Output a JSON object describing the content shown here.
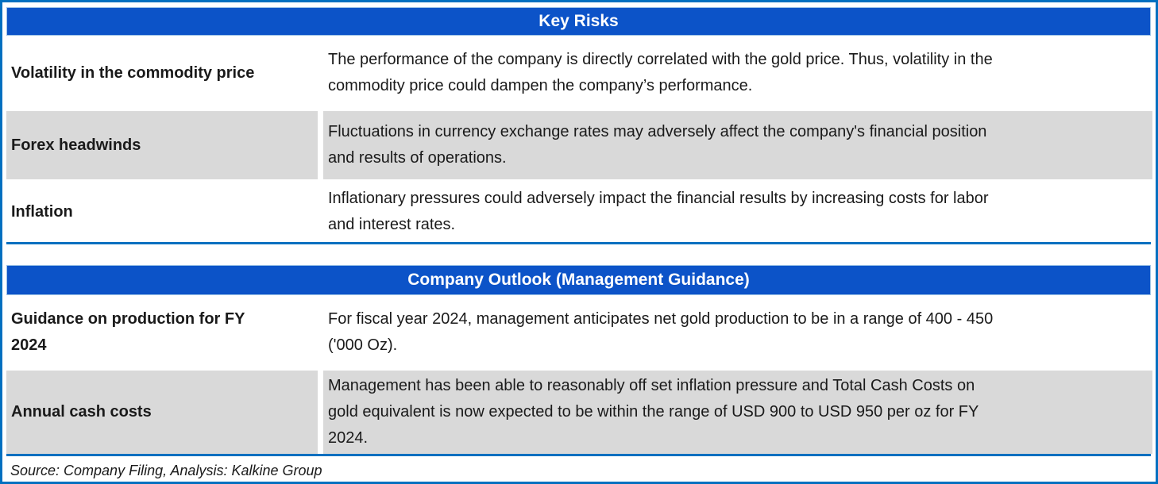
{
  "palette": {
    "frame_border_blue": "#0070C0",
    "header_fill_blue": "#0C53C8",
    "row_gray": "#D9D9D9",
    "text_color": "#1a1a1a"
  },
  "key_risks": {
    "title": "Key Risks",
    "rows": [
      {
        "label": "Volatility in the commodity price",
        "description": "The performance of the company is directly correlated with the gold price. Thus, volatility in the\ncommodity price could dampen the company’s performance."
      },
      {
        "label": "Forex headwinds",
        "description": "Fluctuations in currency exchange rates may adversely affect the company's financial position\nand results of operations."
      },
      {
        "label": "Inflation",
        "description": "Inflationary pressures could adversely impact the financial results by increasing costs for labor\nand interest rates."
      }
    ]
  },
  "company_outlook": {
    "title": "Company Outlook (Management Guidance)",
    "rows": [
      {
        "label": "Guidance on production for FY\n2024",
        "description": "For fiscal year 2024, management anticipates net gold production to be in a range of 400 - 450\n('000 Oz)."
      },
      {
        "label": "Annual cash costs",
        "description": "Management has been able to reasonably off set inflation pressure and Total Cash Costs on\ngold equivalent is now expected to be within the range of USD 900 to USD 950 per oz for FY\n2024."
      }
    ]
  },
  "footer": {
    "source_note": "Source: Company Filing, Analysis: Kalkine Group"
  }
}
